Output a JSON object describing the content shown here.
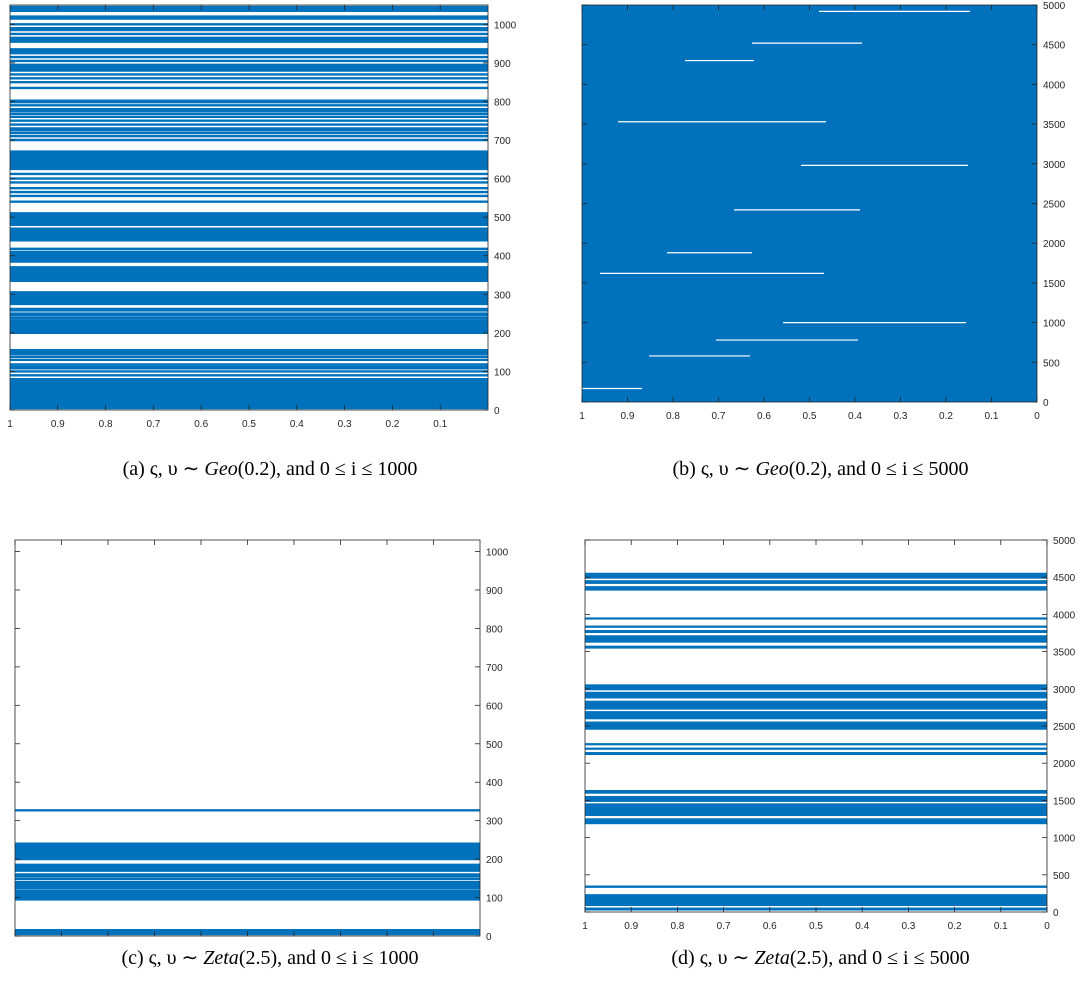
{
  "chart_data": [
    {
      "type": "line",
      "xticks": [
        "1",
        "0.9",
        "0.8",
        "0.7",
        "0.6",
        "0.5",
        "0.4",
        "0.3",
        "0.2",
        "0.1"
      ],
      "xlim": [
        1,
        0
      ],
      "yticks": [
        0,
        100,
        200,
        300,
        400,
        500,
        600,
        700,
        800,
        900,
        1000
      ],
      "ylim": [
        0,
        1050
      ],
      "series_color": "#0072BD",
      "caption": {
        "label": "(a)",
        "sym": "ς, υ ∼",
        "dist": "Geo",
        "param": "(0.2)",
        "tail": ", and 0 ≤ i ≤ 1000"
      },
      "lines_y": [
        5,
        8,
        11,
        14,
        17,
        20,
        23,
        26,
        29,
        32,
        36,
        40,
        44,
        48,
        52,
        56,
        60,
        64,
        68,
        72,
        76,
        80,
        90,
        100,
        108,
        112,
        118,
        130,
        138,
        145,
        150,
        155,
        200,
        205,
        210,
        215,
        220,
        225,
        228,
        232,
        238,
        245,
        250,
        258,
        262,
        275,
        280,
        285,
        290,
        295,
        300,
        305,
        335,
        340,
        345,
        350,
        355,
        360,
        365,
        370,
        385,
        390,
        395,
        400,
        405,
        410,
        418,
        440,
        445,
        450,
        455,
        460,
        465,
        470,
        480,
        485,
        490,
        495,
        500,
        505,
        510,
        540,
        555,
        565,
        575,
        590,
        600,
        612,
        625,
        630,
        635,
        640,
        645,
        650,
        655,
        660,
        665,
        670,
        700,
        710,
        718,
        725,
        730,
        740,
        750,
        760,
        768,
        775,
        780,
        790,
        798,
        802,
        835,
        850,
        860,
        870,
        880,
        885,
        890,
        895,
        905,
        915,
        925,
        930,
        935,
        955,
        960,
        965,
        975,
        985,
        990,
        1000,
        1015,
        1020,
        1035,
        1040,
        1045
      ]
    },
    {
      "type": "area",
      "xticks": [
        "1",
        "0.9",
        "0.8",
        "0.7",
        "0.6",
        "0.5",
        "0.4",
        "0.3",
        "0.2",
        "0.1",
        "0"
      ],
      "xlim": [
        1,
        0
      ],
      "yticks": [
        0,
        500,
        1000,
        1500,
        2000,
        2500,
        3000,
        3500,
        4000,
        4500,
        5000
      ],
      "ylim": [
        0,
        5000
      ],
      "series_color": "#0072BD",
      "caption": {
        "label": "(b)",
        "sym": "ς, υ ∼",
        "dist": "Geo",
        "param": "(0.2)",
        "tail": ", and 0 ≤ i ≤ 5000"
      },
      "gaps_y": [
        170,
        580,
        780,
        1000,
        1620,
        1880,
        2420,
        2980,
        3530,
        4300,
        4520,
        4920
      ]
    },
    {
      "type": "line",
      "xticks": [
        "1",
        "0.9",
        "0.8",
        "0.7",
        "0.6",
        "0.5",
        "0.4",
        "0.3",
        "0.2",
        "0.1"
      ],
      "xlim": [
        1,
        0
      ],
      "yticks": [
        0,
        100,
        200,
        300,
        400,
        500,
        600,
        700,
        800,
        900,
        1000
      ],
      "ylim": [
        0,
        1030
      ],
      "series_color": "#0072BD",
      "caption": {
        "label": "(c)",
        "sym": "ς, υ ∼",
        "dist": "Zeta",
        "param": "(2.5)",
        "tail": ", and 0 ≤ i ≤ 1000"
      },
      "lines_y": [
        5,
        10,
        15,
        95,
        100,
        105,
        110,
        113,
        118,
        125,
        130,
        135,
        140,
        148,
        155,
        160,
        170,
        175,
        180,
        185,
        200,
        205,
        210,
        215,
        220,
        225,
        230,
        235,
        240,
        327
      ]
    },
    {
      "type": "line",
      "xticks": [
        "1",
        "0.9",
        "0.8",
        "0.7",
        "0.6",
        "0.5",
        "0.4",
        "0.3",
        "0.2",
        "0.1",
        "0"
      ],
      "xlim": [
        1,
        0
      ],
      "yticks": [
        0,
        500,
        1000,
        1500,
        2000,
        2500,
        3000,
        3500,
        4000,
        4500,
        5000
      ],
      "ylim": [
        0,
        5000
      ],
      "series_color": "#0072BD",
      "caption": {
        "label": "(d)",
        "sym": "ς, υ ∼",
        "dist": "Zeta",
        "param": "(2.5)",
        "tail": ", and 0 ≤ i ≤ 5000"
      },
      "bands_y": [
        [
          20,
          60
        ],
        [
          80,
          240
        ],
        [
          1180,
          1260
        ],
        [
          1290,
          1460
        ],
        [
          1480,
          1560
        ],
        [
          1590,
          1640
        ],
        [
          2110,
          2150
        ],
        [
          2180,
          2210
        ],
        [
          2240,
          2270
        ],
        [
          2450,
          2560
        ],
        [
          2590,
          2700
        ],
        [
          2720,
          2840
        ],
        [
          2870,
          2960
        ],
        [
          2980,
          3060
        ],
        [
          3540,
          3580
        ],
        [
          3620,
          3720
        ],
        [
          3750,
          3790
        ],
        [
          3820,
          3850
        ],
        [
          3930,
          3960
        ],
        [
          4320,
          4380
        ],
        [
          4410,
          4460
        ],
        [
          4480,
          4560
        ]
      ],
      "lines_y": [
        340
      ]
    }
  ]
}
